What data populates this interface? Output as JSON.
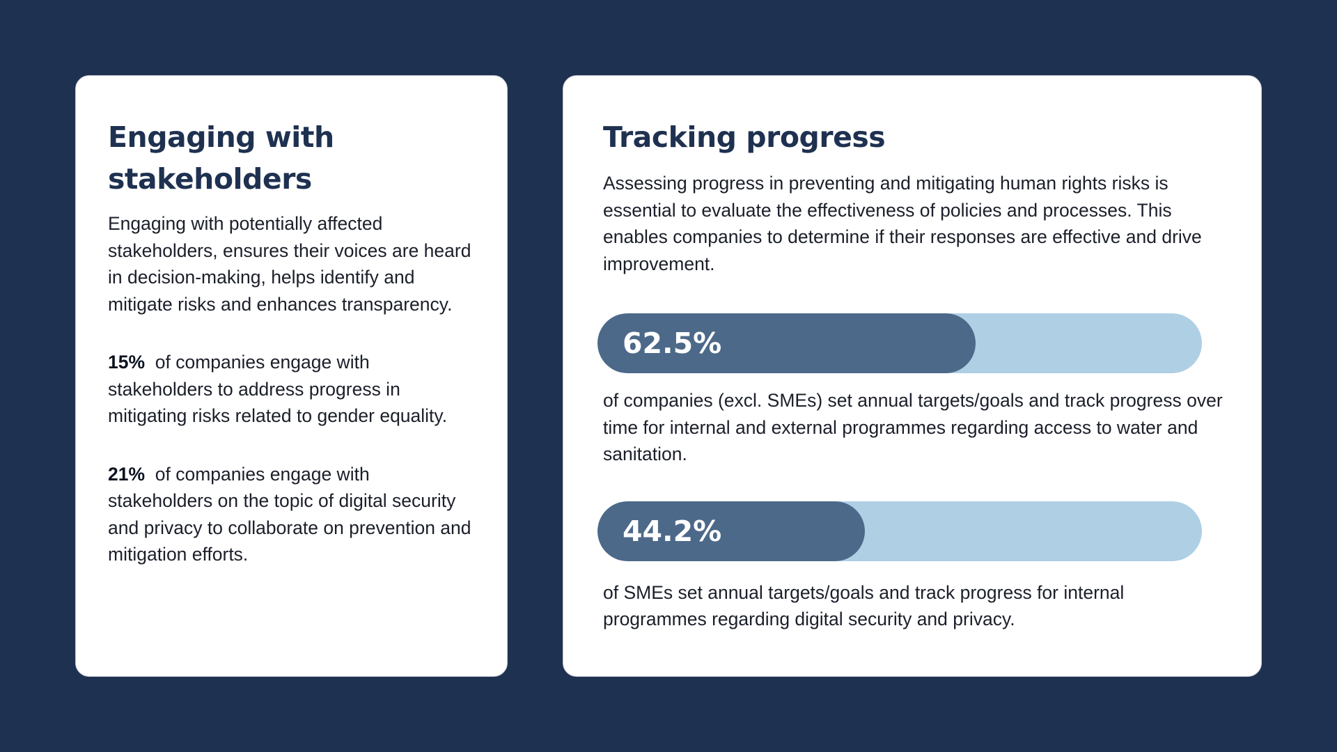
{
  "left_card": {
    "title_line1": "Engaging with",
    "title_line2": "stakeholders",
    "intro": "Engaging with potentially affected stakeholders, ensures their voices are heard in decision-making, helps identify and mitigate risks and enhances transparency.",
    "stats": [
      {
        "value": "15%",
        "text": "of companies engage with stakeholders to address progress in mitigating risks related to gender equality."
      },
      {
        "value": "21%",
        "text": "of companies engage with stakeholders on the topic of digital security and privacy to collaborate on prevention and mitigation efforts."
      }
    ]
  },
  "right_card": {
    "title": "Tracking progress",
    "intro": "Assessing progress in preventing and mitigating human rights risks is essential to evaluate the effectiveness of policies and processes. This enables companies to determine if their responses are effective and drive improvement.",
    "bars": [
      {
        "label": "62.5%",
        "value": 62.5,
        "description": "of companies (excl. SMEs) set annual targets/goals and track progress over time for internal and external programmes regarding access to water and sanitation."
      },
      {
        "label": "44.2%",
        "value": 44.2,
        "description": "of SMEs set annual targets/goals and track progress for internal programmes regarding digital security and privacy."
      }
    ]
  },
  "colors": {
    "background": "#1f3150",
    "card": "#ffffff",
    "title": "#1f3150",
    "bar_fill": "#4d6989",
    "bar_track": "#afcfe5"
  }
}
